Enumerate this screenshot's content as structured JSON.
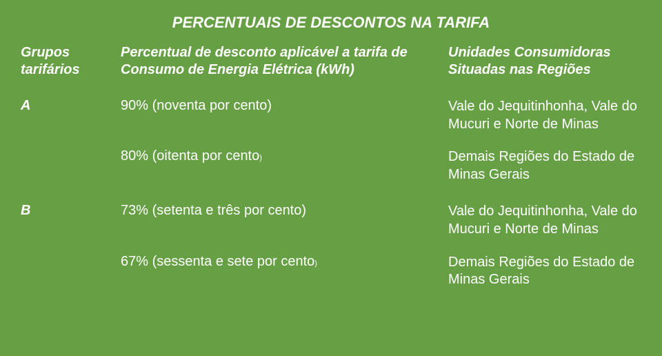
{
  "title": "PERCENTUAIS DE DESCONTOS NA TARIFA",
  "headers": {
    "col1": "Grupos tarifários",
    "col2": "Percentual de desconto aplicável a tarifa de Consumo de Energia Elétrica (kWh)",
    "col3": "Unidades Consumidoras Situadas nas Regiões"
  },
  "groups": {
    "a": {
      "label": "A",
      "row1": {
        "percent": "90% (noventa por cento)",
        "region": "Vale do Jequitinhonha, Vale do Mucuri e Norte de Minas"
      },
      "row2": {
        "percent_pre": "80% (oitenta por cento",
        "percent_close": ")",
        "region": "Demais Regiões do Estado de Minas Gerais"
      }
    },
    "b": {
      "label": "B",
      "row1": {
        "percent": "73% (setenta e três por cento)",
        "region": "Vale do Jequitinhonha, Vale do Mucuri e Norte de Minas"
      },
      "row2": {
        "percent_pre": "67% (sessenta e sete por cento",
        "percent_close": ")",
        "region": "Demais Regiões do Estado de Minas Gerais"
      }
    }
  },
  "style": {
    "background": "#679f45",
    "text_color": "#ffffff",
    "title_fontsize": 22,
    "body_fontsize": 20
  }
}
